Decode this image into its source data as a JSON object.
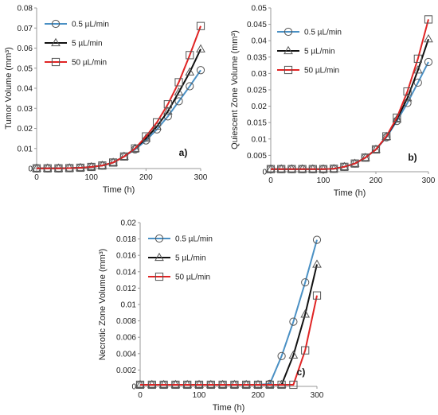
{
  "colors": {
    "0.5 µL/min": "#4a90c4",
    "5 µL/min": "#111111",
    "50 µL/min": "#e02424"
  },
  "markers": {
    "0.5 µL/min": "circle",
    "5 µL/min": "triangle",
    "50 µL/min": "square"
  },
  "chart_data": [
    {
      "type": "line",
      "panel_label": "a)",
      "xlabel": "Time (h)",
      "ylabel": "Tumor Volume (mm³)",
      "xlim": [
        0,
        300
      ],
      "ylim": [
        0,
        0.08
      ],
      "xticks": [
        0,
        100,
        200,
        300
      ],
      "yticks": [
        0,
        0.01,
        0.02,
        0.03,
        0.04,
        0.05,
        0.06,
        0.07,
        0.08
      ],
      "ytick_labels": [
        "0",
        "0.01",
        "0.02",
        "0.03",
        "0.04",
        "0.05",
        "0.06",
        "0.07",
        "0.08"
      ],
      "legend_position": "top-left",
      "x": [
        0,
        20,
        40,
        60,
        80,
        100,
        120,
        140,
        160,
        180,
        200,
        220,
        240,
        260,
        280,
        300
      ],
      "series": [
        {
          "name": "0.5 µL/min",
          "values": [
            0.0001,
            0.0001,
            0.0001,
            0.0002,
            0.0004,
            0.0008,
            0.0015,
            0.003,
            0.006,
            0.0095,
            0.014,
            0.0195,
            0.026,
            0.0335,
            0.041,
            0.049
          ]
        },
        {
          "name": "5 µL/min",
          "values": [
            0.0001,
            0.0001,
            0.0001,
            0.0002,
            0.0004,
            0.0008,
            0.0015,
            0.003,
            0.006,
            0.01,
            0.015,
            0.021,
            0.0285,
            0.038,
            0.048,
            0.0595
          ]
        },
        {
          "name": "50 µL/min",
          "values": [
            0.0001,
            0.0001,
            0.0001,
            0.0002,
            0.0004,
            0.0008,
            0.0015,
            0.003,
            0.006,
            0.01,
            0.016,
            0.023,
            0.032,
            0.043,
            0.0565,
            0.071
          ]
        }
      ]
    },
    {
      "type": "line",
      "panel_label": "b)",
      "xlabel": "Time (h)",
      "ylabel": "Quiescent Zone Volume (mm³)",
      "xlim": [
        0,
        300
      ],
      "ylim": [
        0,
        0.05
      ],
      "xticks": [
        0,
        100,
        200,
        300
      ],
      "yticks": [
        0,
        0.005,
        0.01,
        0.015,
        0.02,
        0.025,
        0.03,
        0.035,
        0.04,
        0.045,
        0.05
      ],
      "ytick_labels": [
        "0",
        "0.005",
        "0.01",
        "0.015",
        "0.02",
        "0.025",
        "0.03",
        "0.035",
        "0.04",
        "0.045",
        "0.05"
      ],
      "legend_position": "top-left",
      "x": [
        0,
        20,
        40,
        60,
        80,
        100,
        120,
        140,
        160,
        180,
        200,
        220,
        240,
        260,
        280,
        300
      ],
      "series": [
        {
          "name": "0.5 µL/min",
          "values": [
            0.0008,
            0.0008,
            0.0008,
            0.0008,
            0.0008,
            0.0008,
            0.0009,
            0.0015,
            0.0025,
            0.0043,
            0.0068,
            0.0105,
            0.0155,
            0.021,
            0.0272,
            0.0335
          ]
        },
        {
          "name": "5 µL/min",
          "values": [
            0.0008,
            0.0008,
            0.0008,
            0.0008,
            0.0008,
            0.0008,
            0.0009,
            0.0015,
            0.0025,
            0.0043,
            0.0068,
            0.0107,
            0.016,
            0.0225,
            0.031,
            0.0405
          ]
        },
        {
          "name": "50 µL/min",
          "values": [
            0.0008,
            0.0008,
            0.0008,
            0.0008,
            0.0008,
            0.0008,
            0.0009,
            0.0015,
            0.0025,
            0.0043,
            0.0068,
            0.0108,
            0.0165,
            0.0245,
            0.0345,
            0.0465
          ]
        }
      ]
    },
    {
      "type": "line",
      "panel_label": "c)",
      "xlabel": "Time (h)",
      "ylabel": "Necrotic Zone Volume (mm³)",
      "xlim": [
        0,
        300
      ],
      "ylim": [
        0,
        0.02
      ],
      "xticks": [
        0,
        100,
        200,
        300
      ],
      "yticks": [
        0,
        0.002,
        0.004,
        0.006,
        0.008,
        0.01,
        0.012,
        0.014,
        0.016,
        0.018,
        0.02
      ],
      "ytick_labels": [
        "0",
        "0.002",
        "0.004",
        "0.006",
        "0.008",
        "0.01",
        "0.012",
        "0.014",
        "0.016",
        "0.018",
        "0.02"
      ],
      "legend_position": "top-left",
      "x": [
        0,
        20,
        40,
        60,
        80,
        100,
        120,
        140,
        160,
        180,
        200,
        220,
        240,
        260,
        280,
        300
      ],
      "series": [
        {
          "name": "0.5 µL/min",
          "values": [
            0.0002,
            0.0002,
            0.0002,
            0.0002,
            0.0002,
            0.0002,
            0.0002,
            0.0002,
            0.0002,
            0.0002,
            0.0002,
            0.0003,
            0.0037,
            0.0079,
            0.0127,
            0.0179
          ]
        },
        {
          "name": "5 µL/min",
          "values": [
            0.0002,
            0.0002,
            0.0002,
            0.0002,
            0.0002,
            0.0002,
            0.0002,
            0.0002,
            0.0002,
            0.0002,
            0.0002,
            0.0002,
            0.0002,
            0.0038,
            0.0088,
            0.0149
          ]
        },
        {
          "name": "50 µL/min",
          "values": [
            0.0002,
            0.0002,
            0.0002,
            0.0002,
            0.0002,
            0.0002,
            0.0002,
            0.0002,
            0.0002,
            0.0002,
            0.0002,
            0.0002,
            0.0002,
            0.0002,
            0.0044,
            0.0111
          ]
        }
      ]
    }
  ]
}
